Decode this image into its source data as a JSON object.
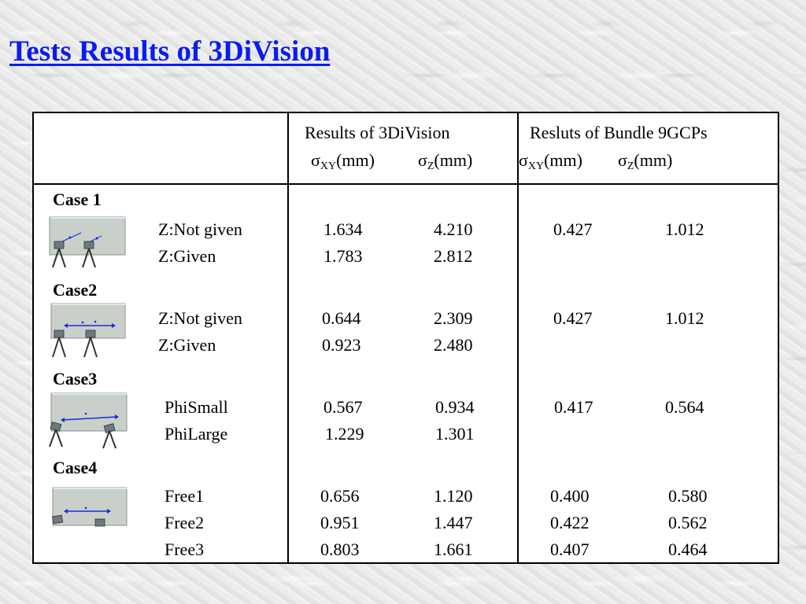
{
  "title": "Tests Results of 3DiVision",
  "header": {
    "group1": "Results of 3DiVision",
    "group2": "Resluts of Bundle 9GCPs",
    "sigma": "σ",
    "sub_xy": "XY",
    "sub_z": "Z",
    "unit": "(mm)"
  },
  "cases": [
    {
      "label": "Case 1",
      "rows": [
        {
          "name": "Z:Not given",
          "d_xy": "1.634",
          "d_z": "4.210",
          "b_xy": "0.427",
          "b_z": "1.012"
        },
        {
          "name": "Z:Given",
          "d_xy": "1.783",
          "d_z": "2.812",
          "b_xy": "",
          "b_z": ""
        }
      ]
    },
    {
      "label": "Case2",
      "rows": [
        {
          "name": "Z:Not given",
          "d_xy": "0.644",
          "d_z": "2.309",
          "b_xy": "0.427",
          "b_z": "1.012"
        },
        {
          "name": "Z:Given",
          "d_xy": "0.923",
          "d_z": "2.480",
          "b_xy": "",
          "b_z": ""
        }
      ]
    },
    {
      "label": "Case3",
      "rows": [
        {
          "name": "PhiSmall",
          "d_xy": "0.567",
          "d_z": "0.934",
          "b_xy": "0.417",
          "b_z": "0.564"
        },
        {
          "name": "PhiLarge",
          "d_xy": "1.229",
          "d_z": "1.301",
          "b_xy": "",
          "b_z": ""
        }
      ]
    },
    {
      "label": "Case4",
      "rows": [
        {
          "name": "Free1",
          "d_xy": "0.656",
          "d_z": "1.120",
          "b_xy": "0.400",
          "b_z": "0.580"
        },
        {
          "name": "Free2",
          "d_xy": "0.951",
          "d_z": "1.447",
          "b_xy": "0.422",
          "b_z": "0.562"
        },
        {
          "name": "Free3",
          "d_xy": "0.803",
          "d_z": "1.661",
          "b_xy": "0.407",
          "b_z": "0.464"
        }
      ]
    }
  ],
  "colors": {
    "title": "#0a1cf0",
    "wall": "#c9cfc9",
    "camera": "#6b7a80",
    "arrow": "#1a2ae0"
  },
  "icons": [
    "camera-setup-icon"
  ]
}
